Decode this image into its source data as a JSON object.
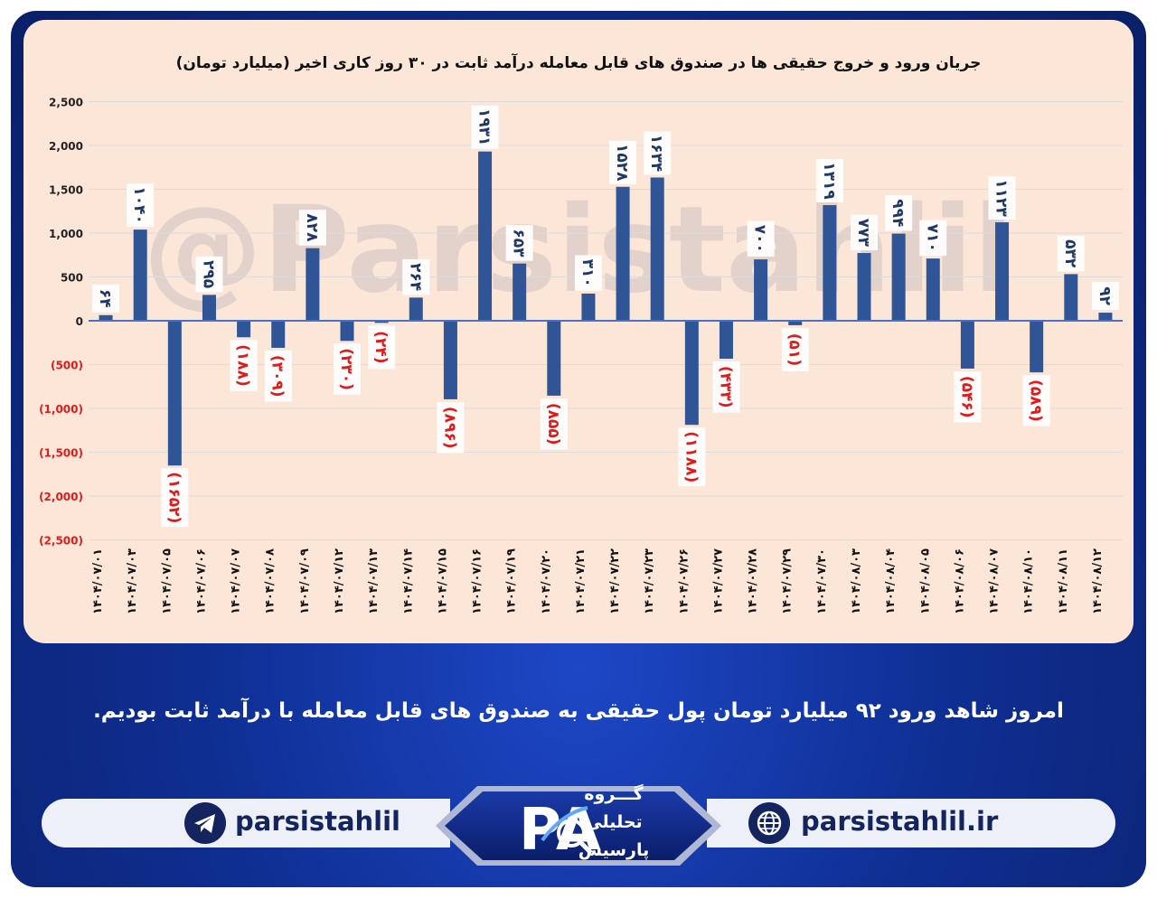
{
  "chart_data": {
    "type": "bar",
    "title": "جریان ورود و خروج حقیقی ها در صندوق های قابل معامله درآمد ثابت در ۳۰ روز کاری اخیر (میلیارد تومان)",
    "categories": [
      "۱۴۰۴/۰۷/۰۱",
      "۱۴۰۴/۰۷/۰۳",
      "۱۴۰۴/۰۷/۰۵",
      "۱۴۰۴/۰۷/۰۶",
      "۱۴۰۴/۰۷/۰۷",
      "۱۴۰۴/۰۷/۰۸",
      "۱۴۰۴/۰۷/۰۹",
      "۱۴۰۴/۰۷/۱۲",
      "۱۴۰۴/۰۷/۱۳",
      "۱۴۰۴/۰۷/۱۴",
      "۱۴۰۴/۰۷/۱۵",
      "۱۴۰۴/۰۷/۱۶",
      "۱۴۰۴/۰۷/۱۹",
      "۱۴۰۴/۰۷/۲۰",
      "۱۴۰۴/۰۷/۲۱",
      "۱۴۰۴/۰۷/۲۲",
      "۱۴۰۴/۰۷/۲۳",
      "۱۴۰۴/۰۷/۲۶",
      "۱۴۰۴/۰۷/۲۷",
      "۱۴۰۴/۰۷/۲۸",
      "۱۴۰۴/۰۷/۲۹",
      "۱۴۰۴/۰۷/۳۰",
      "۱۴۰۴/۰۸/۰۳",
      "۱۴۰۴/۰۸/۰۴",
      "۱۴۰۴/۰۸/۰۵",
      "۱۴۰۴/۰۸/۰۶",
      "۱۴۰۴/۰۸/۰۷",
      "۱۴۰۴/۰۸/۱۰",
      "۱۴۰۴/۰۸/۱۱",
      "۱۴۰۴/۰۸/۱۲"
    ],
    "values": [
      64,
      1040,
      -1652,
      295,
      -188,
      -309,
      828,
      -230,
      -24,
      264,
      -896,
      1931,
      653,
      -855,
      310,
      1528,
      1634,
      -1188,
      -433,
      700,
      -51,
      1319,
      773,
      994,
      710,
      -546,
      1123,
      -589,
      532,
      92
    ],
    "data_labels": [
      "۶۴",
      "۱۰۴۰",
      "(۱۶۵۲)",
      "۲۹۵",
      "(۱۸۸)",
      "(۳۰۹)",
      "۸۲۸",
      "(۲۳۰)",
      "(۲۴)",
      "۲۶۴",
      "(۸۹۶)",
      "۱۹۳۱",
      "۶۵۳",
      "(۸۵۵)",
      "۳۱۰",
      "۱۵۲۸",
      "۱۶۳۴",
      "(۱۱۸۸)",
      "(۴۳۳)",
      "۷۰۰",
      "(۵۱)",
      "۱۳۱۹",
      "۷۷۳",
      "۹۹۴",
      "۷۱۰",
      "(۵۴۶)",
      "۱۱۲۳",
      "(۵۸۹)",
      "۵۳۲",
      "۹۲"
    ],
    "y_ticks": [
      2500,
      2000,
      1500,
      1000,
      500,
      0,
      -500,
      -1000,
      -1500,
      -2000,
      -2500
    ],
    "y_tick_labels": [
      "2,500",
      "2,000",
      "1,500",
      "1,000",
      "500",
      "0",
      "(500)",
      "(1,000)",
      "(1,500)",
      "(2,000)",
      "(2,500)"
    ],
    "ylim": [
      -2500,
      2500
    ],
    "grid": true,
    "bar_color": "#2f5597",
    "negative_label_color": "#e01b1b",
    "positive_label_color": "#1f3864"
  },
  "watermark": "@Parsistahlil",
  "caption": "امروز شاهد ورود ۹۲ میلیارد تومان پول حقیقی به صندوق های قابل معامله با درآمد ثابت بودیم.",
  "footer": {
    "telegram_handle": "parsistahlil",
    "website": "parsistahlil.ir",
    "logo_lines": [
      "گـــروه",
      "تحلیلی",
      "پارسیس"
    ],
    "logo_letters": "PA"
  },
  "colors": {
    "frame": "#0f2f94",
    "panel": "#fbe6d8",
    "footer_text": "#13245e"
  }
}
